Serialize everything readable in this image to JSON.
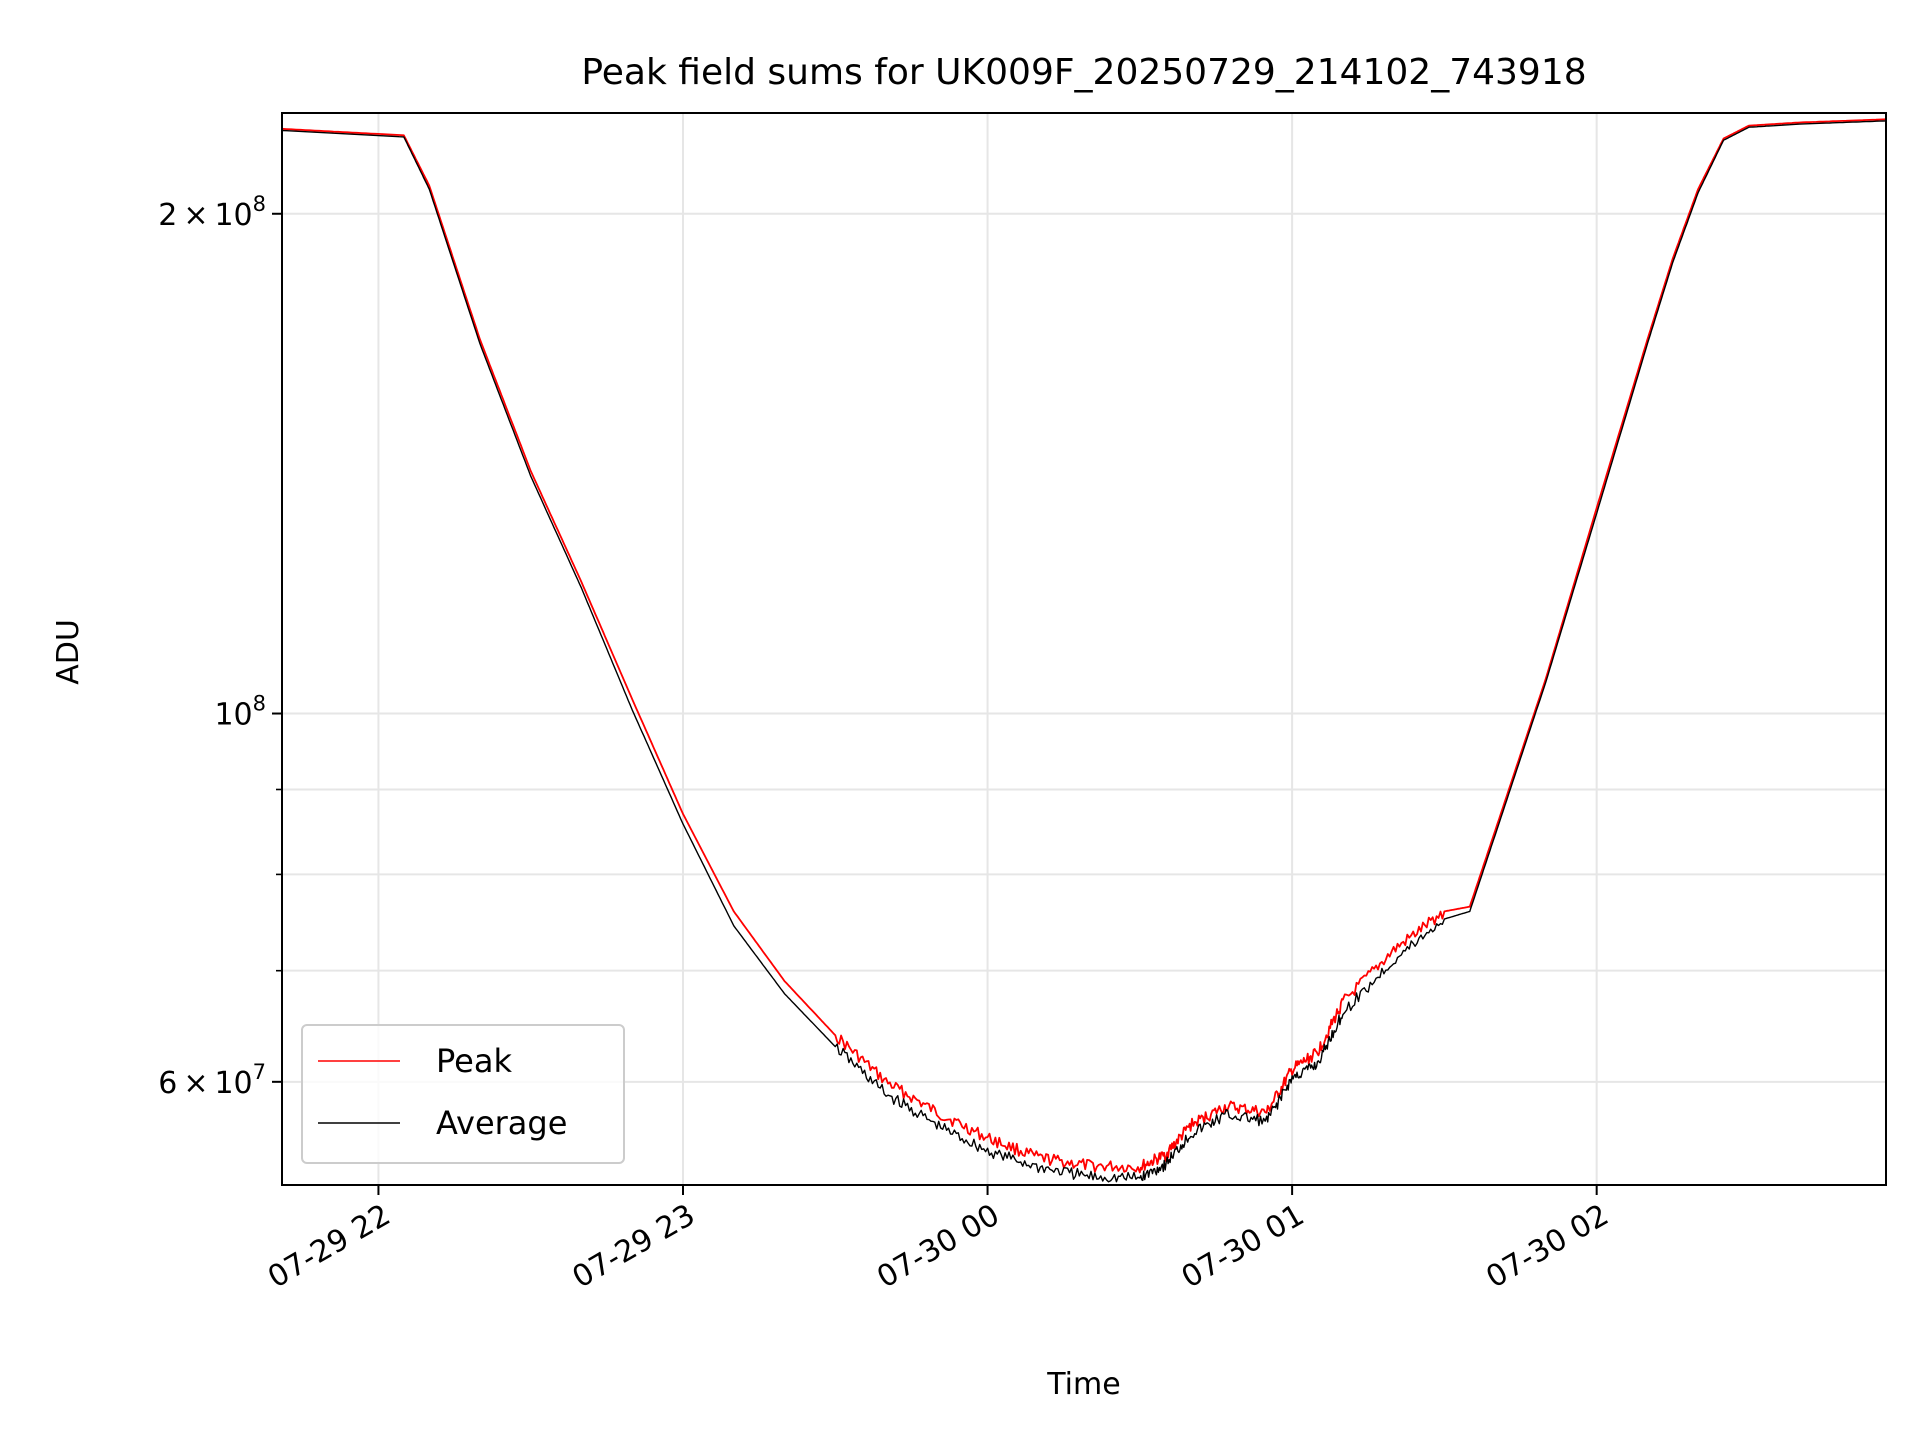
{
  "chart_data": {
    "type": "line",
    "title": "Peak field sums for UK009F_20250729_214102_743918",
    "xlabel": "Time",
    "ylabel": "ADU",
    "yscale": "log",
    "xlim": [
      "07-29 21:41",
      "07-30 02:57"
    ],
    "ylim": [
      52000000,
      230000000
    ],
    "grid": true,
    "legend_position": "lower-left",
    "x_ticks": [
      {
        "value": "07-29 22:00",
        "label": "07-29 22"
      },
      {
        "value": "07-29 23:00",
        "label": "07-29 23"
      },
      {
        "value": "07-30 00:00",
        "label": "07-30 00"
      },
      {
        "value": "07-30 01:00",
        "label": "07-30 01"
      },
      {
        "value": "07-30 02:00",
        "label": "07-30 02"
      }
    ],
    "y_major_ticks": [
      {
        "value": 200000000,
        "mantissa": "2",
        "exponent": "8"
      },
      {
        "value": 100000000,
        "mantissa": "",
        "exponent": "8"
      },
      {
        "value": 60000000,
        "mantissa": "6",
        "exponent": "7"
      }
    ],
    "y_minor_ticks": [
      90000000,
      80000000,
      70000000
    ],
    "series": [
      {
        "name": "Peak",
        "color": "#ff0000",
        "x": [
          "07-29 21:41",
          "07-29 22:05",
          "07-29 22:10",
          "07-29 22:20",
          "07-29 22:30",
          "07-29 22:40",
          "07-29 22:50",
          "07-29 23:00",
          "07-29 23:10",
          "07-29 23:20",
          "07-29 23:30",
          "07-29 23:40",
          "07-29 23:50",
          "07-30 00:00",
          "07-30 00:10",
          "07-30 00:20",
          "07-30 00:30",
          "07-30 00:35",
          "07-30 00:40",
          "07-30 00:47",
          "07-30 00:55",
          "07-30 01:00",
          "07-30 01:05",
          "07-30 01:10",
          "07-30 01:20",
          "07-30 01:30",
          "07-30 01:35",
          "07-30 01:40",
          "07-30 01:50",
          "07-30 02:00",
          "07-30 02:10",
          "07-30 02:15",
          "07-30 02:20",
          "07-30 02:25",
          "07-30 02:30",
          "07-30 02:40",
          "07-30 02:57"
        ],
        "y": [
          225000000,
          223000000,
          208000000,
          168000000,
          140000000,
          120000000,
          102000000,
          87000000,
          76000000,
          69000000,
          64000000,
          60000000,
          57500000,
          55500000,
          54000000,
          53400000,
          53300000,
          54200000,
          56500000,
          58000000,
          57500000,
          61000000,
          62500000,
          67000000,
          72000000,
          76000000,
          76500000,
          85000000,
          105000000,
          133000000,
          168000000,
          188000000,
          207000000,
          222000000,
          226000000,
          227000000,
          228000000
        ]
      },
      {
        "name": "Average",
        "color": "#000000",
        "x": [
          "07-29 21:41",
          "07-29 22:05",
          "07-29 22:10",
          "07-29 22:20",
          "07-29 22:30",
          "07-29 22:40",
          "07-29 22:50",
          "07-29 23:00",
          "07-29 23:10",
          "07-29 23:20",
          "07-29 23:30",
          "07-29 23:40",
          "07-29 23:50",
          "07-30 00:00",
          "07-30 00:10",
          "07-30 00:20",
          "07-30 00:30",
          "07-30 00:35",
          "07-30 00:40",
          "07-30 00:47",
          "07-30 00:55",
          "07-30 01:00",
          "07-30 01:05",
          "07-30 01:10",
          "07-30 01:20",
          "07-30 01:30",
          "07-30 01:35",
          "07-30 01:40",
          "07-30 01:50",
          "07-30 02:00",
          "07-30 02:10",
          "07-30 02:15",
          "07-30 02:20",
          "07-30 02:25",
          "07-30 02:30",
          "07-30 02:40",
          "07-30 02:57"
        ],
        "y": [
          224500000,
          222500000,
          207000000,
          167000000,
          139000000,
          119000000,
          100500000,
          85800000,
          74500000,
          67800000,
          63000000,
          59000000,
          56500000,
          54500000,
          53300000,
          52600000,
          52500000,
          53500000,
          55800000,
          57300000,
          56800000,
          60300000,
          61500000,
          66000000,
          71000000,
          75200000,
          76000000,
          84500000,
          104500000,
          132000000,
          167000000,
          187000000,
          206000000,
          221500000,
          225500000,
          226500000,
          227500000
        ]
      }
    ]
  }
}
